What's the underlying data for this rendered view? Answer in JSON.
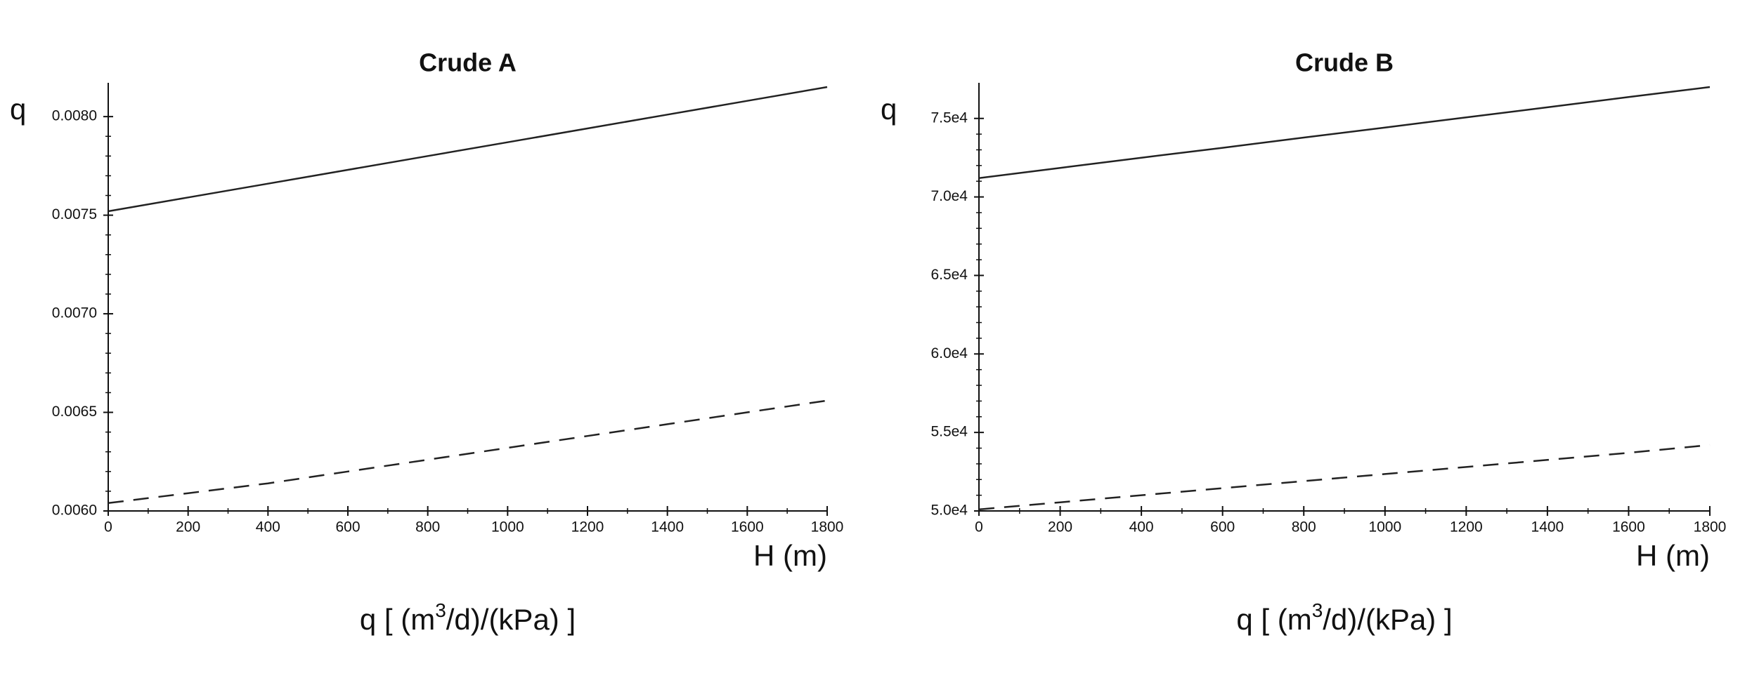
{
  "chart_data": [
    {
      "type": "line",
      "title": "Crude A",
      "y_label": "q",
      "x_label": "H (m)",
      "caption": {
        "before": "q [ (m",
        "sup": "3",
        "after": "/d)/(kPa) ]"
      },
      "x": [
        0,
        200,
        400,
        600,
        800,
        1000,
        1200,
        1400,
        1600,
        1800
      ],
      "xlim": [
        0,
        1800
      ],
      "xticks": [
        0,
        200,
        400,
        600,
        800,
        1000,
        1200,
        1400,
        1600,
        1800
      ],
      "ylim": [
        0.006,
        0.00815
      ],
      "yticks": [
        {
          "value": 0.006,
          "label": "0.0060"
        },
        0.0065,
        {
          "value": 0.007,
          "label": "0.0070"
        },
        0.0075,
        {
          "value": 0.008,
          "label": "0.0080"
        }
      ],
      "series": [
        {
          "color": "#222222",
          "style": "solid",
          "values": [
            0.00752,
            0.00759,
            0.00766,
            0.00773,
            0.0078,
            0.00787,
            0.00794,
            0.00801,
            0.00808,
            0.00815
          ]
        },
        {
          "color": "#222222",
          "style": "dashed",
          "values": [
            0.00604,
            0.00609,
            0.00614,
            0.0062,
            0.00626,
            0.00632,
            0.00638,
            0.00644,
            0.0065,
            0.00656
          ]
        }
      ]
    },
    {
      "type": "line",
      "title": "Crude B",
      "y_label": "q",
      "x_label": "H (m)",
      "caption": {
        "before": "q [ (m",
        "sup": "3",
        "after": "/d)/(kPa) ]"
      },
      "x": [
        0,
        200,
        400,
        600,
        800,
        1000,
        1200,
        1400,
        1600,
        1800
      ],
      "xlim": [
        0,
        1800
      ],
      "xticks": [
        0,
        200,
        400,
        600,
        800,
        1000,
        1200,
        1400,
        1600,
        1800
      ],
      "ylim": [
        50000,
        77000
      ],
      "yticks": [
        {
          "value": 50000,
          "label": "5.0e4"
        },
        {
          "value": 55000,
          "label": "5.5e4"
        },
        {
          "value": 60000,
          "label": "6.0e4"
        },
        {
          "value": 65000,
          "label": "6.5e4"
        },
        {
          "value": 70000,
          "label": "7.0e4"
        },
        {
          "value": 75000,
          "label": "7.5e4"
        }
      ],
      "series": [
        {
          "color": "#222222",
          "style": "solid",
          "values": [
            71200,
            71850,
            72500,
            73130,
            73780,
            74420,
            75070,
            75710,
            76360,
            77000
          ]
        },
        {
          "color": "#222222",
          "style": "dashed",
          "values": [
            50100,
            50550,
            51000,
            51450,
            51900,
            52350,
            52800,
            53250,
            53700,
            54200
          ]
        }
      ]
    }
  ]
}
